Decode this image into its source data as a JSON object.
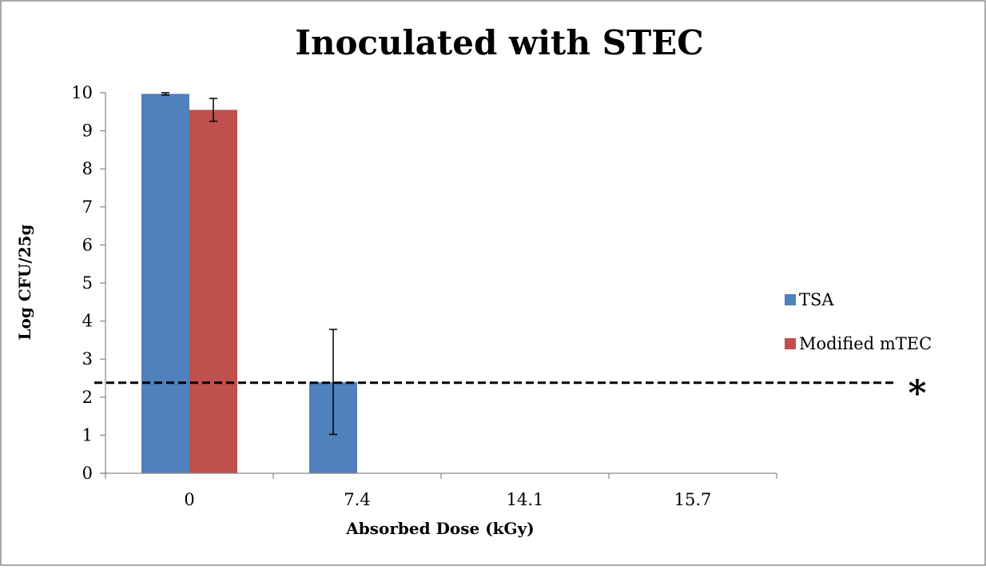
{
  "chart_data": {
    "type": "bar",
    "title": "Inoculated with STEC",
    "xlabel": "Absorbed Dose (kGy)",
    "ylabel": "Log CFU/25g",
    "categories": [
      "0",
      "7.4",
      "14.1",
      "15.7"
    ],
    "ylim": [
      0,
      10
    ],
    "yticks": [
      0,
      1,
      2,
      3,
      4,
      5,
      6,
      7,
      8,
      9,
      10
    ],
    "grid": false,
    "legend_position": "right",
    "series": [
      {
        "name": "TSA",
        "color": "#4f81bd",
        "values": [
          9.97,
          2.4,
          0,
          0
        ],
        "error": [
          0.03,
          1.38,
          0,
          0
        ]
      },
      {
        "name": "Modified mTEC",
        "color": "#c0504d",
        "values": [
          9.55,
          0,
          0,
          0
        ],
        "error": [
          0.3,
          0,
          0,
          0
        ]
      }
    ],
    "reference_line": {
      "value": 2.38,
      "style": "dashed",
      "label": "*"
    }
  }
}
